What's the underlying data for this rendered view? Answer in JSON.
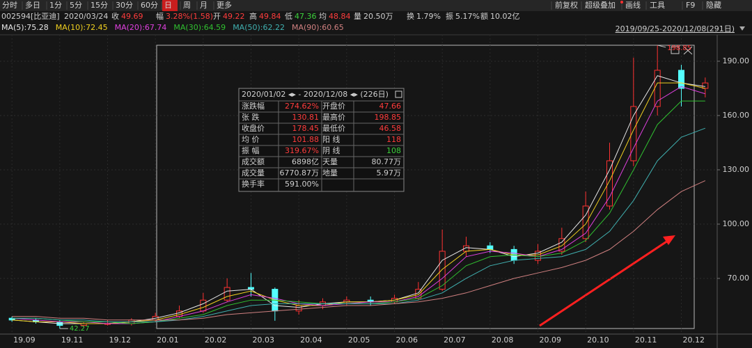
{
  "toolbar": {
    "left": [
      "分时",
      "多日",
      "1分",
      "5分",
      "15分",
      "30分",
      "60分",
      "日",
      "周",
      "月",
      "更多"
    ],
    "right": [
      "前复权",
      "超级叠加",
      "画线",
      "工具",
      "F9",
      "隐藏"
    ]
  },
  "info": {
    "code": "002594[比亚迪]",
    "date": "2020/03/24",
    "items": [
      {
        "label": "收",
        "value": "49.69"
      },
      {
        "label": "幅",
        "value": "3.28%(1.58)"
      },
      {
        "label": "开",
        "value": "49.22"
      },
      {
        "label": "高",
        "value": "49.84"
      },
      {
        "label": "低",
        "value": "47.36"
      },
      {
        "label": "均",
        "value": "48.84"
      },
      {
        "label": "量",
        "value": "20.50万"
      },
      {
        "label": "换",
        "value": "1.79%"
      },
      {
        "label": "振",
        "value": "5.17%"
      },
      {
        "label": "额",
        "value": "10.02亿"
      }
    ]
  },
  "range": "2019/09/25-2020/12/08(291日)",
  "stats": {
    "title": "2020/01/02 ◂▸ - 2020/12/08 ◂▸  (226日)",
    "rows": [
      [
        "涨跌幅",
        "274.62%",
        "开盘价",
        "47.66"
      ],
      [
        "张  跌",
        "130.81",
        "最高价",
        "198.85"
      ],
      [
        "收盘价",
        "178.45",
        "最低价",
        "46.58"
      ],
      [
        "均  价",
        "101.88",
        "阳  线",
        "118"
      ],
      [
        "振  幅",
        "319.67%",
        "阴  线",
        "108"
      ],
      [
        "成交额",
        "6898亿",
        "天量",
        "80.77万"
      ],
      [
        "成交量",
        "6770.87万",
        "地量",
        "5.97万"
      ],
      [
        "换手率",
        "591.00%"
      ]
    ]
  },
  "chart_data": {
    "type": "candlestick",
    "categories": [
      "19.09",
      null,
      "19.11",
      null,
      "19.12",
      null,
      "20.01",
      null,
      "20.02",
      null,
      "20.03",
      null,
      "20.04",
      null,
      "20.05",
      null,
      "20.06",
      null,
      "20.07",
      null,
      "20.08",
      null,
      "20.09",
      null,
      "20.10",
      null,
      "20.11",
      null,
      "20.12",
      null
    ],
    "open": [
      48,
      47,
      46,
      44,
      45,
      45,
      47,
      49,
      52,
      58,
      65,
      64,
      52,
      55,
      57,
      58,
      57,
      59,
      64,
      85,
      88,
      86,
      80,
      85,
      92,
      110,
      135,
      165,
      185,
      175
    ],
    "high": [
      49,
      48,
      47,
      46,
      47,
      48,
      51,
      55,
      62,
      70,
      73,
      65,
      58,
      59,
      60,
      60,
      61,
      68,
      97,
      93,
      90,
      88,
      89,
      98,
      118,
      145,
      192,
      198.85,
      188,
      181
    ],
    "low": [
      46,
      45,
      42.27,
      43,
      44,
      44,
      46,
      48,
      51,
      57,
      60,
      46.58,
      50,
      53,
      55,
      55,
      56,
      58,
      63,
      82,
      84,
      78,
      78,
      83,
      90,
      108,
      132,
      160,
      165,
      170
    ],
    "close": [
      47,
      46,
      44,
      45,
      45,
      47,
      49,
      52,
      58,
      65,
      64,
      52,
      55,
      57,
      58,
      57,
      59,
      64,
      85,
      88,
      86,
      80,
      85,
      92,
      110,
      135,
      165,
      185,
      175,
      178
    ],
    "up_color": "#ff3232",
    "down_color": "#54ffff",
    "series": [
      {
        "name": "MA(5):75.28",
        "color": "#e8e8e8",
        "values": [
          47,
          46,
          45,
          45,
          45,
          46,
          48,
          51,
          56,
          63,
          64,
          55,
          54,
          56,
          57,
          57,
          58,
          62,
          80,
          87,
          86,
          82,
          84,
          90,
          105,
          130,
          160,
          182,
          178,
          176
        ]
      },
      {
        "name": "MA(10):72.45",
        "color": "#f0d020",
        "values": [
          47,
          46,
          46,
          45,
          45,
          46,
          47,
          50,
          54,
          60,
          63,
          58,
          55,
          55,
          57,
          57,
          58,
          61,
          75,
          85,
          86,
          83,
          83,
          88,
          100,
          124,
          152,
          178,
          178,
          175
        ]
      },
      {
        "name": "MA(20):67.74",
        "color": "#e040e0",
        "values": [
          48,
          47,
          46,
          46,
          45,
          45,
          46,
          49,
          52,
          57,
          61,
          59,
          56,
          55,
          56,
          57,
          57,
          60,
          70,
          82,
          85,
          84,
          82,
          86,
          95,
          115,
          142,
          168,
          176,
          172
        ]
      },
      {
        "name": "MA(30):64.59",
        "color": "#30c030",
        "values": [
          48,
          48,
          47,
          46,
          46,
          45,
          46,
          48,
          50,
          55,
          58,
          58,
          57,
          56,
          56,
          56,
          57,
          59,
          66,
          77,
          82,
          83,
          82,
          84,
          91,
          106,
          130,
          155,
          168,
          168
        ]
      },
      {
        "name": "MA(50):62.22",
        "color": "#40b0b0",
        "values": [
          48,
          48,
          47,
          47,
          46,
          46,
          46,
          47,
          49,
          52,
          55,
          56,
          56,
          56,
          56,
          56,
          56,
          58,
          62,
          70,
          77,
          80,
          81,
          82,
          86,
          96,
          113,
          135,
          148,
          153
        ]
      },
      {
        "name": "MA(90):60.65",
        "color": "#d08080",
        "values": [
          49,
          49,
          48,
          48,
          47,
          47,
          47,
          47,
          48,
          50,
          51,
          52,
          53,
          54,
          55,
          55,
          56,
          57,
          59,
          62,
          66,
          70,
          73,
          76,
          80,
          86,
          96,
          108,
          118,
          124
        ]
      }
    ],
    "ylim": [
      40,
      204.6
    ],
    "yticks": [
      {
        "value": 70,
        "label": "70.00"
      },
      {
        "value": 100,
        "label": "100.00"
      },
      {
        "value": 130,
        "label": "130.00"
      },
      {
        "value": 160,
        "label": "160.00"
      },
      {
        "value": 190,
        "label": "190.00"
      }
    ],
    "annotations": [
      {
        "text": "198.85",
        "index": 27,
        "value": 198.85
      },
      {
        "text": "42.27",
        "index": 2,
        "value": 42.27
      }
    ],
    "grid": true
  }
}
